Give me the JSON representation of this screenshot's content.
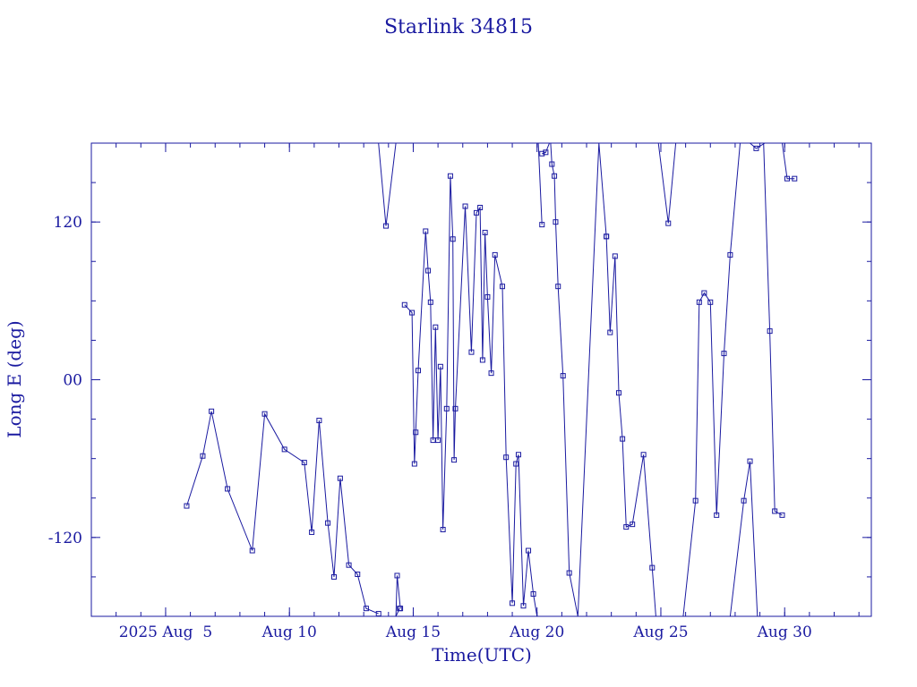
{
  "chart_data": {
    "type": "line",
    "title": "Starlink 34815",
    "xlabel": "Time(UTC)",
    "ylabel": "Long E (deg)",
    "x_unit": "day of August 2025 (UTC)",
    "xlim": [
      1.0,
      32.5
    ],
    "ylim": [
      -180,
      180
    ],
    "grid": false,
    "color": "#1a1aa0",
    "x_ticks": [
      {
        "x": 4,
        "label": "2025 Aug  5"
      },
      {
        "x": 9,
        "label": "Aug 10"
      },
      {
        "x": 14,
        "label": "Aug 15"
      },
      {
        "x": 19,
        "label": "Aug 20"
      },
      {
        "x": 24,
        "label": "Aug 25"
      },
      {
        "x": 29,
        "label": "Aug 30"
      }
    ],
    "y_ticks": [
      {
        "y": 120,
        "label": "120"
      },
      {
        "y": 0,
        "label": "00"
      },
      {
        "y": -120,
        "label": "-120"
      }
    ],
    "series": [
      {
        "x": [
          4.85,
          5.5,
          5.85,
          6.5,
          7.5,
          8.0,
          8.8,
          9.6,
          9.9,
          10.2,
          10.55,
          10.8,
          11.05,
          11.4,
          11.75,
          12.1,
          12.6
        ],
        "y": [
          -96,
          -58,
          -24,
          -83,
          -130,
          -26,
          -53,
          -63,
          -116,
          -31,
          -109,
          -150,
          -75,
          -141,
          -148,
          -174,
          -178
        ]
      },
      {
        "x": [
          12.6,
          12.9,
          13.3,
          13.45
        ],
        "y": [
          180,
          117,
          180,
          180
        ]
      },
      {
        "x": [
          13.3,
          13.45
        ],
        "y": [
          -180,
          -174
        ]
      },
      {
        "x": [
          13.3,
          13.35,
          13.48
        ],
        "y": [
          -180,
          -149,
          -174
        ]
      },
      {
        "x": [
          13.65,
          13.95,
          14.05,
          14.1,
          14.2,
          14.5,
          14.6,
          14.7,
          14.8,
          14.9,
          15.0,
          15.1,
          15.2,
          15.35,
          15.5,
          15.6,
          15.65,
          15.7,
          16.1,
          16.35,
          16.55,
          16.7,
          16.8,
          16.9,
          17.0,
          17.15,
          17.3,
          17.6,
          17.75,
          18.0,
          18.15,
          18.25,
          18.45,
          18.65,
          18.85,
          19.0
        ],
        "y": [
          57,
          51,
          -64,
          -40,
          7,
          113,
          83,
          59,
          -46,
          40,
          -46,
          10,
          -114,
          -22,
          155,
          107,
          -61,
          -22,
          132,
          21,
          127,
          131,
          15,
          112,
          63,
          5,
          95,
          71,
          -59,
          -170,
          -64,
          -57,
          -172,
          -130,
          -163,
          -180
        ]
      },
      {
        "x": [
          19.05,
          19.2
        ],
        "y": [
          180,
          118
        ]
      },
      {
        "x": [
          19.2,
          19.35,
          19.5
        ],
        "y": [
          172,
          173,
          180
        ]
      },
      {
        "x": [
          19.55,
          19.6,
          19.7,
          19.75,
          19.85,
          20.05,
          20.3,
          20.65,
          21.5,
          21.8
        ],
        "y": [
          180,
          164,
          155,
          120,
          71,
          3,
          -147,
          -180,
          180,
          109
        ]
      },
      {
        "x": [
          21.8,
          21.95,
          22.15,
          22.3,
          22.45,
          22.6,
          22.85,
          23.3,
          23.65,
          23.8
        ],
        "y": [
          109,
          36,
          94,
          -10,
          -45,
          -112,
          -110,
          -57,
          -143,
          -180
        ]
      },
      {
        "x": [
          23.9,
          24.3,
          24.6
        ],
        "y": [
          180,
          119,
          180
        ]
      },
      {
        "x": [
          24.9,
          25.4,
          25.55,
          25.75,
          26.0,
          26.25,
          26.55,
          26.8,
          27.2
        ],
        "y": [
          -180,
          -92,
          59,
          66,
          59,
          -103,
          20,
          95,
          180
        ]
      },
      {
        "x": [
          26.8,
          27.35,
          27.6,
          27.9,
          28.1
        ],
        "y": [
          -180,
          -92,
          -62,
          -180,
          -180
        ]
      },
      {
        "x": [
          27.6,
          27.85,
          28.2
        ],
        "y": [
          180,
          176,
          180
        ]
      },
      {
        "x": [
          28.15,
          28.4,
          28.6,
          28.9
        ],
        "y": [
          180,
          37,
          -100,
          -103
        ]
      },
      {
        "x": [
          28.9,
          29.1,
          29.4
        ],
        "y": [
          180,
          153,
          153
        ]
      }
    ]
  }
}
